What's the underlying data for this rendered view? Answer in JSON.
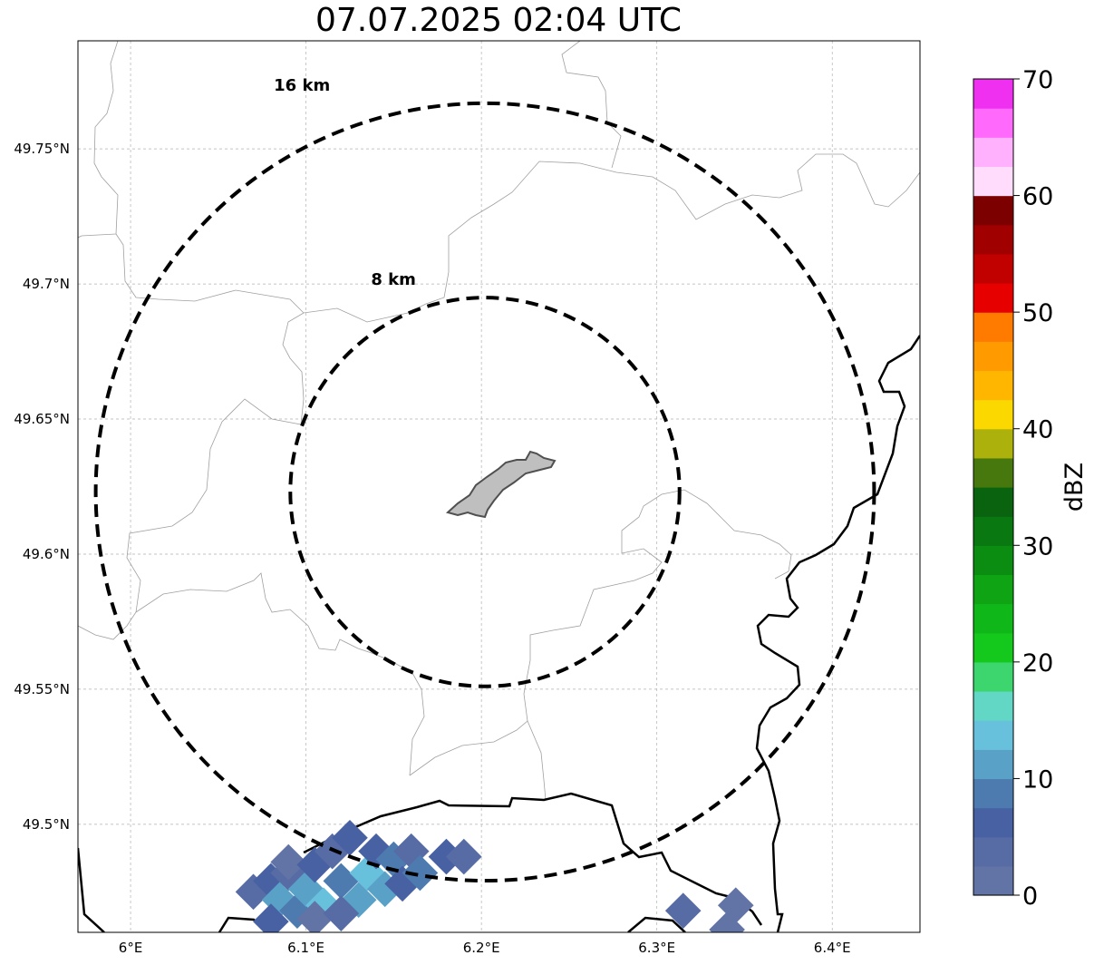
{
  "title": "07.07.2025 02:04 UTC",
  "map": {
    "lon_range": [
      5.97,
      6.45
    ],
    "lat_range": [
      49.46,
      49.79
    ],
    "x_ticks": [
      {
        "value": 6.0,
        "label": "6°E"
      },
      {
        "value": 6.1,
        "label": "6.1°E"
      },
      {
        "value": 6.2,
        "label": "6.2°E"
      },
      {
        "value": 6.3,
        "label": "6.3°E"
      },
      {
        "value": 6.4,
        "label": "6.4°E"
      }
    ],
    "y_ticks": [
      {
        "value": 49.5,
        "label": "49.5°N"
      },
      {
        "value": 49.55,
        "label": "49.55°N"
      },
      {
        "value": 49.6,
        "label": "49.6°N"
      },
      {
        "value": 49.65,
        "label": "49.65°N"
      },
      {
        "value": 49.7,
        "label": "49.7°N"
      },
      {
        "value": 49.75,
        "label": "49.75°N"
      }
    ],
    "gridlines": true,
    "center": {
      "lon": 6.202,
      "lat": 49.623
    },
    "rings": [
      {
        "radius_km": 8,
        "label": "8 km"
      },
      {
        "radius_km": 16,
        "label": "16 km"
      }
    ],
    "reflectivity_cells": [
      {
        "lon": 6.07,
        "lat": 49.475,
        "dbz": 3
      },
      {
        "lon": 6.08,
        "lat": 49.479,
        "dbz": 6
      },
      {
        "lon": 6.09,
        "lat": 49.482,
        "dbz": 4
      },
      {
        "lon": 6.085,
        "lat": 49.472,
        "dbz": 12
      },
      {
        "lon": 6.095,
        "lat": 49.468,
        "dbz": 8
      },
      {
        "lon": 6.09,
        "lat": 49.486,
        "dbz": 2
      },
      {
        "lon": 6.1,
        "lat": 49.476,
        "dbz": 10
      },
      {
        "lon": 6.105,
        "lat": 49.485,
        "dbz": 5
      },
      {
        "lon": 6.11,
        "lat": 49.47,
        "dbz": 13
      },
      {
        "lon": 6.12,
        "lat": 49.479,
        "dbz": 9
      },
      {
        "lon": 6.115,
        "lat": 49.49,
        "dbz": 4
      },
      {
        "lon": 6.125,
        "lat": 49.495,
        "dbz": 6
      },
      {
        "lon": 6.13,
        "lat": 49.472,
        "dbz": 11
      },
      {
        "lon": 6.135,
        "lat": 49.482,
        "dbz": 14
      },
      {
        "lon": 6.14,
        "lat": 49.49,
        "dbz": 7
      },
      {
        "lon": 6.145,
        "lat": 49.476,
        "dbz": 10
      },
      {
        "lon": 6.15,
        "lat": 49.487,
        "dbz": 8
      },
      {
        "lon": 6.155,
        "lat": 49.478,
        "dbz": 6
      },
      {
        "lon": 6.16,
        "lat": 49.49,
        "dbz": 3
      },
      {
        "lon": 6.165,
        "lat": 49.482,
        "dbz": 9
      },
      {
        "lon": 6.18,
        "lat": 49.488,
        "dbz": 5
      },
      {
        "lon": 6.19,
        "lat": 49.488,
        "dbz": 4
      },
      {
        "lon": 6.105,
        "lat": 49.465,
        "dbz": 2
      },
      {
        "lon": 6.12,
        "lat": 49.467,
        "dbz": 3
      },
      {
        "lon": 6.08,
        "lat": 49.464,
        "dbz": 5
      },
      {
        "lon": 6.315,
        "lat": 49.468,
        "dbz": 3
      },
      {
        "lon": 6.345,
        "lat": 49.47,
        "dbz": 1
      },
      {
        "lon": 6.34,
        "lat": 49.461,
        "dbz": 2
      }
    ]
  },
  "colorbar": {
    "label": "dBZ",
    "min": 0,
    "max": 70,
    "ticks": [
      "0",
      "10",
      "20",
      "30",
      "40",
      "50",
      "60",
      "70"
    ],
    "colors": [
      "#6273a6",
      "#576ca5",
      "#4861a3",
      "#4d7bb0",
      "#5aa1c8",
      "#68c1dc",
      "#62d7c5",
      "#3dd66e",
      "#14c81c",
      "#10b719",
      "#0fa413",
      "#0b8d11",
      "#097810",
      "#0a630f",
      "#47780d",
      "#acb10c",
      "#fad800",
      "#feb600",
      "#ff9b00",
      "#fe7b00",
      "#e60000",
      "#c10000",
      "#a00000",
      "#7c0000",
      "#ffdcfb",
      "#ffb1fd",
      "#ff6afc",
      "#ef30f0"
    ]
  }
}
